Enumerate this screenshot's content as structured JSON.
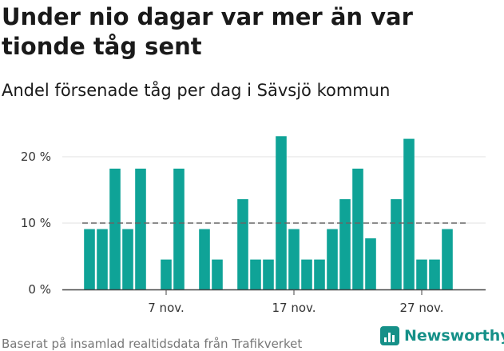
{
  "title": "Under nio dagar var mer än var tionde tåg sent",
  "subtitle": "Andel försenade tåg per dag i Sävsjö kommun",
  "source": "Baserat på insamlad realtidsdata från Trafikverket",
  "logo": {
    "text": "Newsworthy",
    "icon": "newsworthy-bar-icon",
    "color": "#159088"
  },
  "colors": {
    "bar": "#0fa397",
    "reference_line": "#666666",
    "grid": "#e2e2e2",
    "axis": "#444444"
  },
  "chart_data": {
    "type": "bar",
    "title": "Under nio dagar var mer än var tionde tåg sent",
    "subtitle": "Andel försenade tåg per dag i Sävsjö kommun",
    "x": [
      "2024-11-01",
      "2024-11-02",
      "2024-11-03",
      "2024-11-04",
      "2024-11-05",
      "2024-11-06",
      "2024-11-07",
      "2024-11-08",
      "2024-11-09",
      "2024-11-10",
      "2024-11-11",
      "2024-11-12",
      "2024-11-13",
      "2024-11-14",
      "2024-11-15",
      "2024-11-16",
      "2024-11-17",
      "2024-11-18",
      "2024-11-19",
      "2024-11-20",
      "2024-11-21",
      "2024-11-22",
      "2024-11-23",
      "2024-11-24",
      "2024-11-25",
      "2024-11-26",
      "2024-11-27",
      "2024-11-28",
      "2024-11-29",
      "2024-11-30"
    ],
    "values": [
      9.1,
      9.1,
      18.2,
      9.1,
      18.2,
      0,
      4.5,
      18.2,
      0,
      9.1,
      4.5,
      0,
      13.6,
      4.5,
      4.5,
      23.1,
      9.1,
      4.5,
      4.5,
      9.1,
      13.6,
      18.2,
      7.7,
      0,
      13.6,
      22.7,
      4.5,
      4.5,
      9.1,
      0
    ],
    "reference_line": {
      "value": 10,
      "style": "dashed"
    },
    "ylim": [
      0,
      25
    ],
    "y_ticks": [
      0,
      10,
      20
    ],
    "y_tick_labels": [
      "0 %",
      "10 %",
      "20 %"
    ],
    "x_tick_labels": [
      {
        "x": "2024-11-07",
        "label": "7 nov."
      },
      {
        "x": "2024-11-17",
        "label": "17 nov."
      },
      {
        "x": "2024-11-27",
        "label": "27 nov."
      }
    ],
    "xlabel": "",
    "ylabel": "",
    "grid": true,
    "legend": "none"
  }
}
